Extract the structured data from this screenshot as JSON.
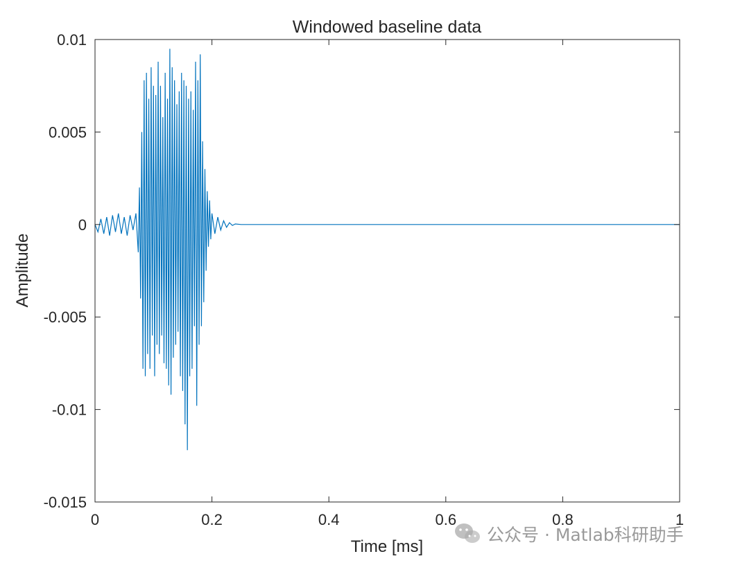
{
  "chart_data": {
    "type": "line",
    "title": "Windowed baseline data",
    "xlabel": "Time [ms]",
    "ylabel": "Amplitude",
    "xlim": [
      0,
      1
    ],
    "ylim": [
      -0.015,
      0.01
    ],
    "xticks": [
      0,
      0.2,
      0.4,
      0.6,
      0.8,
      1
    ],
    "xtick_labels": [
      "0",
      "0.2",
      "0.4",
      "0.6",
      "0.8",
      "1"
    ],
    "yticks": [
      -0.015,
      -0.01,
      -0.005,
      0,
      0.005,
      0.01
    ],
    "ytick_labels": [
      "-0.015",
      "-0.01",
      "-0.005",
      "0",
      "0.005",
      "0.01"
    ],
    "grid": false,
    "line_color": "#0072BD",
    "series": [
      {
        "x": [
          0,
          0.005,
          0.01,
          0.015,
          0.02,
          0.025,
          0.03,
          0.035,
          0.04,
          0.045,
          0.05,
          0.055,
          0.06,
          0.065,
          0.07,
          0.074,
          0.076,
          0.078,
          0.08,
          0.082,
          0.084,
          0.086,
          0.088,
          0.09,
          0.092,
          0.094,
          0.096,
          0.098,
          0.1,
          0.102,
          0.104,
          0.106,
          0.108,
          0.11,
          0.112,
          0.114,
          0.116,
          0.118,
          0.12,
          0.122,
          0.124,
          0.126,
          0.128,
          0.13,
          0.132,
          0.134,
          0.136,
          0.138,
          0.14,
          0.142,
          0.144,
          0.146,
          0.148,
          0.15,
          0.152,
          0.154,
          0.156,
          0.158,
          0.16,
          0.162,
          0.164,
          0.166,
          0.168,
          0.17,
          0.172,
          0.174,
          0.176,
          0.178,
          0.18,
          0.182,
          0.184,
          0.186,
          0.188,
          0.19,
          0.192,
          0.194,
          0.196,
          0.198,
          0.2,
          0.205,
          0.21,
          0.215,
          0.22,
          0.225,
          0.23,
          0.235,
          0.24,
          0.25,
          0.3,
          0.4,
          0.5,
          0.6,
          0.7,
          0.8,
          0.9,
          1
        ],
        "y": [
          0,
          -0.0004,
          0.0003,
          -0.0005,
          0.0004,
          -0.0006,
          0.0005,
          -0.0004,
          0.0006,
          -0.0005,
          0.0004,
          -0.0006,
          0.0005,
          -0.0003,
          0.0006,
          -0.0015,
          0.002,
          -0.004,
          0.005,
          -0.0078,
          0.0078,
          -0.0082,
          0.0082,
          -0.007,
          0.0068,
          -0.0078,
          0.0085,
          -0.006,
          0.0075,
          -0.0082,
          0.007,
          -0.0065,
          0.0088,
          -0.007,
          0.0075,
          -0.006,
          0.0058,
          -0.0075,
          0.0082,
          -0.0078,
          0.0068,
          -0.0087,
          0.0095,
          -0.0092,
          0.0085,
          -0.0072,
          0.0078,
          -0.0065,
          0.0065,
          -0.0058,
          0.0072,
          -0.0082,
          0.0082,
          -0.009,
          0.0078,
          -0.0108,
          0.0075,
          -0.0122,
          0.0068,
          -0.0082,
          0.0072,
          -0.0078,
          0.0062,
          -0.0055,
          0.0088,
          -0.0098,
          0.0078,
          -0.0065,
          0.0092,
          -0.0055,
          0.0045,
          -0.0042,
          0.003,
          -0.0025,
          0.0018,
          -0.0012,
          0.0013,
          -0.0008,
          0.0006,
          -0.0005,
          0.0004,
          -0.0003,
          0.0002,
          -0.00015,
          0.0001,
          -5e-05,
          3e-05,
          0,
          0,
          0,
          0,
          0,
          0,
          0,
          0,
          0
        ]
      }
    ]
  },
  "watermark": {
    "icon": "wechat-icon",
    "text": "公众号 · Matlab科研助手"
  }
}
